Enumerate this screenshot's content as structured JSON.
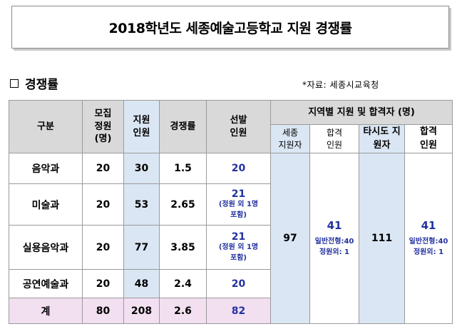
{
  "title": "2018학년도 세종예술고등학교 지원 경쟁률",
  "section_heading": "경쟁률",
  "source": "*자료: 세종시교육청",
  "table": {
    "headers": {
      "category": "구분",
      "quota": [
        "모집",
        "정원",
        "(명)"
      ],
      "applicants": [
        "지원",
        "인원"
      ],
      "ratio": "경쟁률",
      "selected": [
        "선발",
        "인원"
      ],
      "regional": "지역별 지원 및 합격자 (명)",
      "sejong_applicants": [
        "세종",
        "지원자"
      ],
      "sejong_passed": [
        "합격",
        "인원"
      ],
      "other_applicants": "타시도 지원자",
      "other_passed": [
        "합격",
        "인원"
      ]
    },
    "rows": [
      {
        "name": "음악과",
        "quota": "20",
        "applicants": "30",
        "ratio": "1.5",
        "selected": "20",
        "note": []
      },
      {
        "name": "미술과",
        "quota": "20",
        "applicants": "53",
        "ratio": "2.65",
        "selected": "21",
        "note": [
          "(정원 외 1명",
          "포함)"
        ]
      },
      {
        "name": "실용음악과",
        "quota": "20",
        "applicants": "77",
        "ratio": "3.85",
        "selected": "21",
        "note": [
          "(정원 외 1명",
          "포함)"
        ]
      },
      {
        "name": "공연예술과",
        "quota": "20",
        "applicants": "48",
        "ratio": "2.4",
        "selected": "20",
        "note": []
      }
    ],
    "total": {
      "name": "계",
      "quota": "80",
      "applicants": "208",
      "ratio": "2.6",
      "selected": "82"
    },
    "regional": {
      "sejong_applicants": "97",
      "sejong_passed": "41",
      "sejong_passed_detail": [
        "일반전형:40",
        "정원외: 1"
      ],
      "other_applicants": "111",
      "other_passed": "41",
      "other_passed_detail": [
        "일반전형:40",
        "정원외: 1"
      ]
    }
  },
  "colors": {
    "header_bg": "#d9d9d9",
    "applicant_col_bg": "#dbe6f4",
    "total_row_bg": "#f2dff0",
    "selected_text": "#2332a0"
  }
}
